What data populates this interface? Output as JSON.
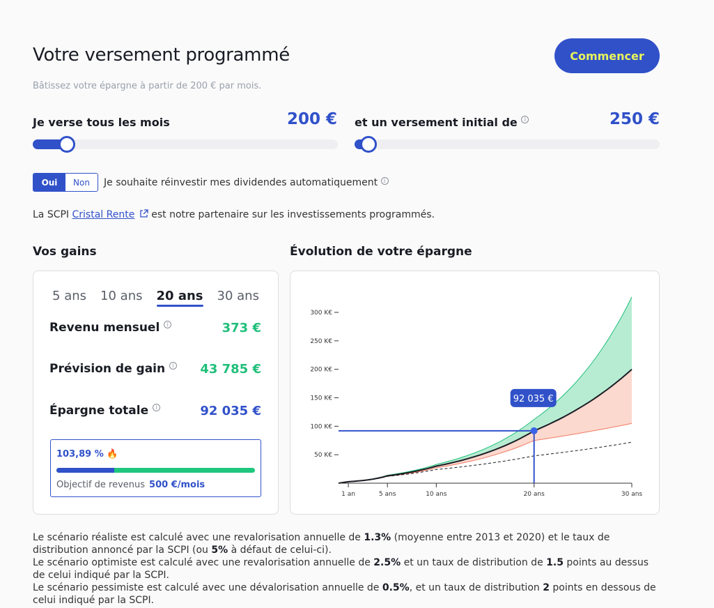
{
  "header": {
    "title": "Votre versement programmé",
    "subtitle": "Bâtissez votre épargne à partir de 200 € par mois.",
    "cta_label": "Commencer"
  },
  "monthly": {
    "label": "Je verse tous les mois",
    "value": "200 €",
    "position": 0.09
  },
  "initial": {
    "label": "et un versement initial de",
    "value": "250 €",
    "position": 0.02
  },
  "reinvest": {
    "yes": "Oui",
    "no": "Non",
    "selected": "Oui",
    "text": "Je souhaite réinvestir mes dividendes automatiquement"
  },
  "partner": {
    "prefix": "La SCPI",
    "link": "Cristal Rente",
    "suffix": "est notre partenaire sur les investissements programmés."
  },
  "gains": {
    "heading": "Vos gains",
    "tabs": [
      "5 ans",
      "10 ans",
      "20 ans",
      "30 ans"
    ],
    "active_tab": "20 ans",
    "rows": [
      {
        "label": "Revenu mensuel",
        "value": "373 €",
        "color": "#1fbf7a"
      },
      {
        "label": "Prévision de gain",
        "value": "43 785 €",
        "color": "#1fbf7a"
      },
      {
        "label": "Épargne totale",
        "value": "92 035 €",
        "color": "#3151c9"
      }
    ],
    "objective": {
      "percent": "103,89 %",
      "fire_icon": "🔥",
      "label": "Objectif de revenus",
      "amount": "500 €/mois",
      "progress": 0.29
    }
  },
  "evolution": {
    "heading": "Évolution de votre épargne",
    "tooltip": "92 035 €"
  },
  "chart_data": {
    "type": "area",
    "x": [
      1,
      5,
      10,
      20,
      30
    ],
    "xticks": [
      "1 an",
      "5 ans",
      "10 ans",
      "20 ans",
      "30 ans"
    ],
    "yticks": [
      "50 K€",
      "100 K€",
      "150 K€",
      "200 K€",
      "250 K€",
      "300 K€"
    ],
    "ylim": [
      0,
      330
    ],
    "series": [
      {
        "name": "",
        "values": [
          2.7,
          14,
          33,
          112,
          327
        ],
        "color": "#1fbf7a"
      },
      {
        "name": "",
        "values": [
          2.6,
          13,
          30,
          92,
          200
        ],
        "color": "#1a1c24"
      },
      {
        "name": "",
        "values": [
          2.5,
          12,
          27,
          75,
          105
        ],
        "color": "#f07b63"
      },
      {
        "name": "",
        "values": [
          2.4,
          12,
          24,
          48,
          72
        ],
        "color": "#1a1c24"
      }
    ],
    "highlight": {
      "x": 20,
      "y": 92.035
    }
  },
  "notes": [
    [
      "Le scénario réaliste est calculé avec une revalorisation annuelle de ",
      "1.3%",
      " (moyenne entre 2013 et 2020) et le taux de distribution annoncé par la SCPI (ou ",
      "5%",
      " à défaut de celui-ci)."
    ],
    [
      "Le scénario optimiste est calculé avec une revalorisation annuelle de ",
      "2.5%",
      " et un taux de distribution de ",
      "1.5",
      " points au dessus de celui indiqué par la SCPI."
    ],
    [
      "Le scénario pessimiste est calculé avec une dévalorisation annuelle de ",
      "0.5%",
      ", et un taux de distribution ",
      "2",
      " points en dessous de celui indiqué par la SCPI."
    ]
  ]
}
